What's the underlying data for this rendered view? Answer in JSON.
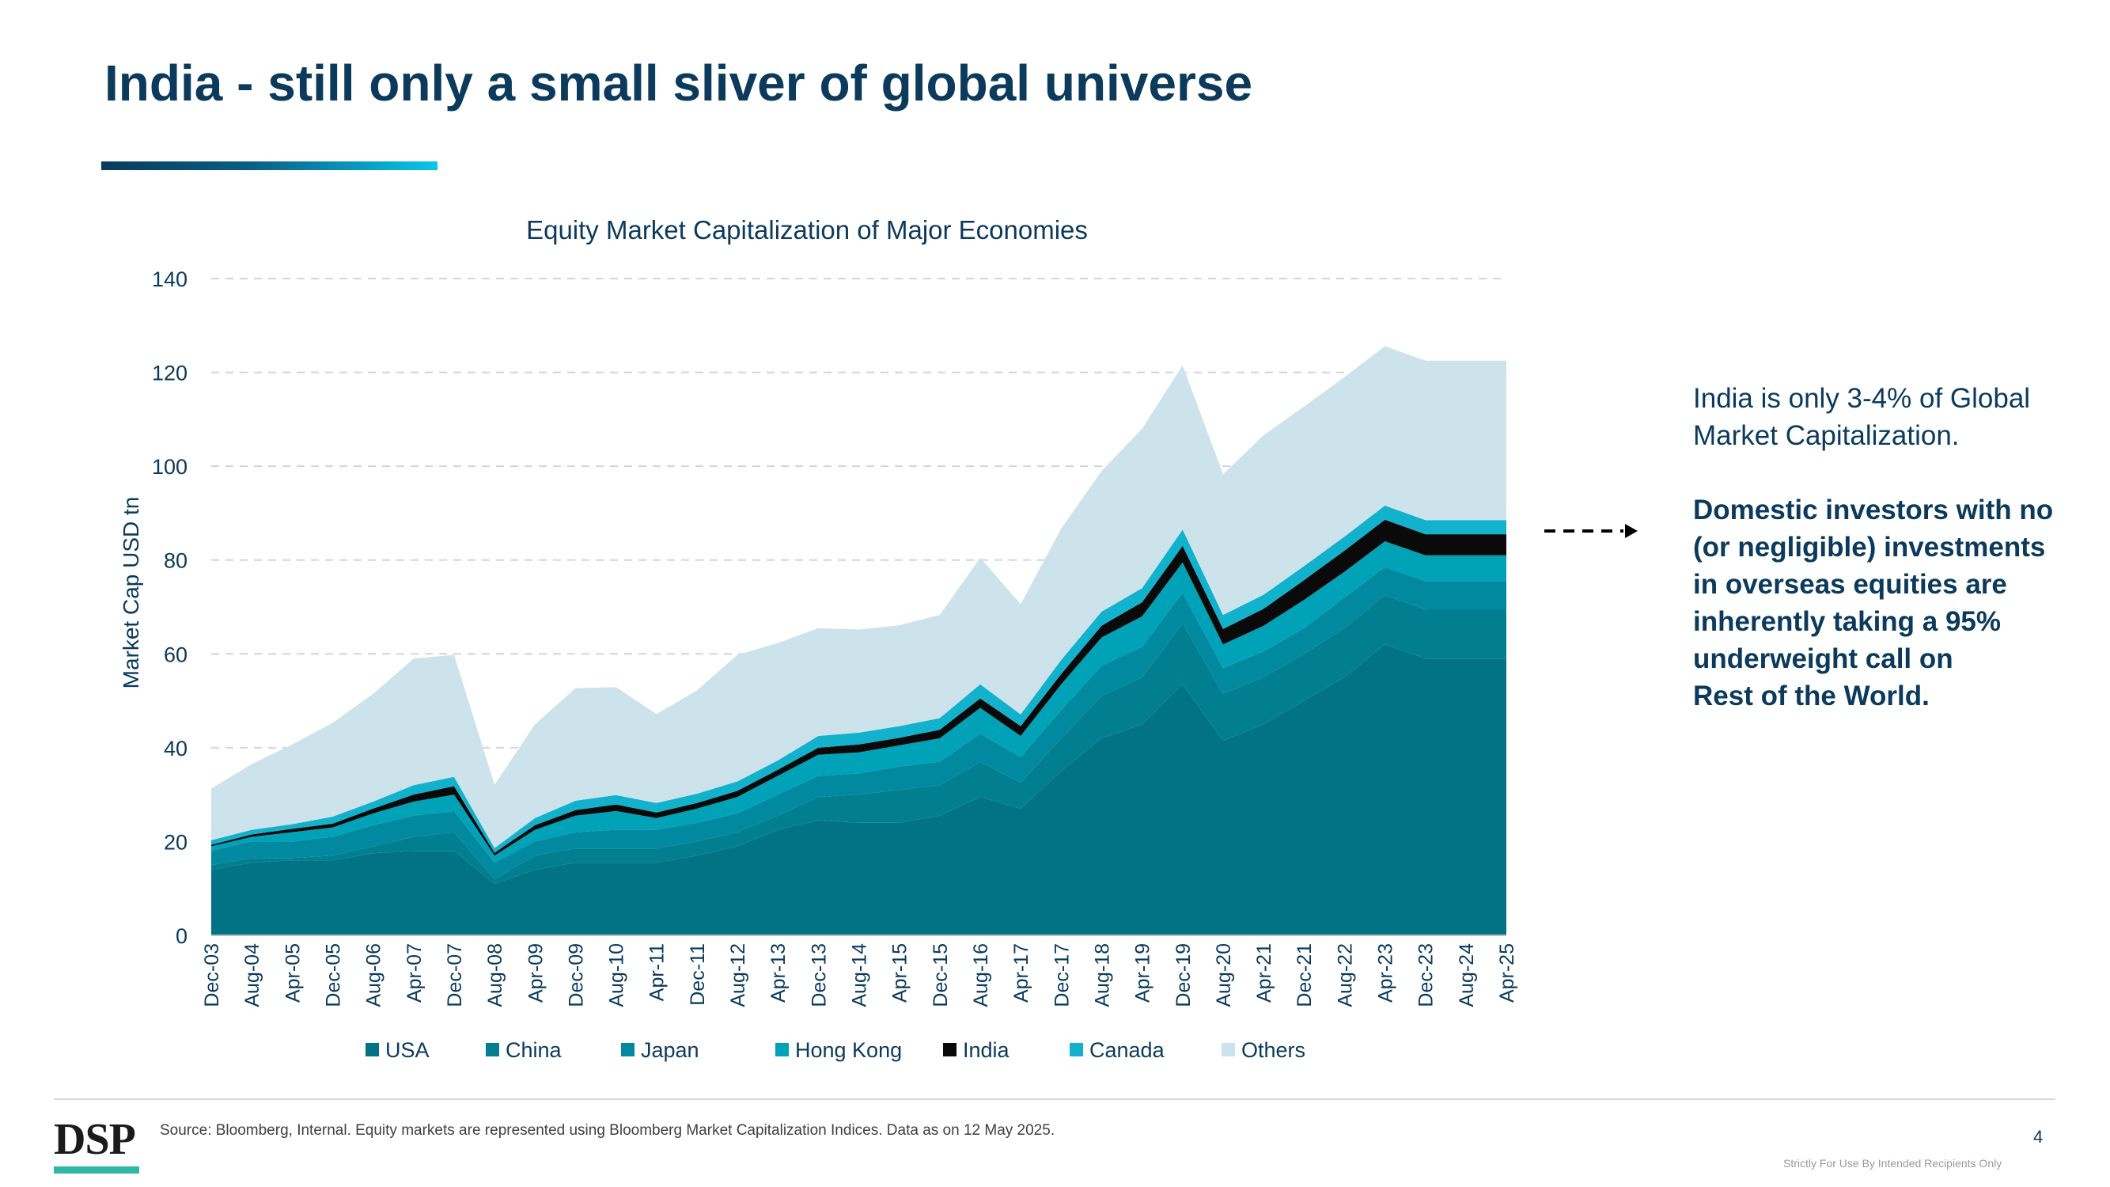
{
  "slide": {
    "title": "India - still only a small sliver of global universe",
    "callout_text": "India is only 3-4% of Global Market Capitalization.",
    "callout_bold_lines": [
      "Domestic investors with no",
      "(or negligible) investments",
      "in overseas equities are",
      "inherently taking a 95%",
      "underweight call on",
      "Rest of the World."
    ],
    "source": "Source: Bloomberg, Internal. Equity markets are represented using Bloomberg Market Capitalization Indices. Data as on 12 May 2025.",
    "page_number": "4",
    "disclaimer": "Strictly For Use By Intended Recipients Only",
    "logo_text": "DSP",
    "colors": {
      "title": "#0b3a5c",
      "logo_bar": "#2fb7a6"
    }
  },
  "chart_data": {
    "type": "area",
    "stacked": true,
    "title": "Equity Market Capitalization of Major Economies",
    "ylabel": "Market Cap USD tn",
    "xlabel": "",
    "ylim": [
      0,
      140
    ],
    "yticks": [
      0,
      20,
      40,
      60,
      80,
      100,
      120,
      140
    ],
    "grid": true,
    "legend_position": "bottom",
    "x_tick_labels": [
      "Dec-03",
      "Aug-04",
      "Apr-05",
      "Dec-05",
      "Aug-06",
      "Apr-07",
      "Dec-07",
      "Aug-08",
      "Apr-09",
      "Dec-09",
      "Aug-10",
      "Apr-11",
      "Dec-11",
      "Aug-12",
      "Apr-13",
      "Dec-13",
      "Aug-14",
      "Apr-15",
      "Dec-15",
      "Aug-16",
      "Apr-17",
      "Dec-17",
      "Aug-18",
      "Apr-19",
      "Dec-19",
      "Aug-20",
      "Apr-21",
      "Dec-21",
      "Aug-22",
      "Apr-23",
      "Dec-23",
      "Aug-24",
      "Apr-25"
    ],
    "x": [
      "Dec-03",
      "Aug-04",
      "Apr-05",
      "Dec-05",
      "Aug-06",
      "Apr-07",
      "Dec-07",
      "Aug-08",
      "Apr-09",
      "Dec-09",
      "Aug-10",
      "Apr-11",
      "Dec-11",
      "Aug-12",
      "Apr-13",
      "Dec-13",
      "Aug-14",
      "Apr-15",
      "Dec-15",
      "Aug-16",
      "Apr-17",
      "Dec-17",
      "Aug-18",
      "Apr-19",
      "Dec-19",
      "Aug-20",
      "Apr-21",
      "Dec-21",
      "Aug-22",
      "Apr-23",
      "Dec-23",
      "Aug-24",
      "Apr-25"
    ],
    "series": [
      {
        "name": "USA",
        "color": "#017385",
        "values": [
          14.0,
          15.5,
          16.0,
          16.0,
          17.5,
          18.0,
          18.0,
          11.0,
          14.0,
          15.5,
          15.5,
          15.5,
          17.0,
          19.0,
          22.5,
          24.5,
          24.0,
          24.0,
          25.5,
          29.5,
          27.0,
          35.0,
          42.0,
          45.0,
          53.5,
          41.5,
          45.0,
          50.0,
          55.0,
          62.0,
          59.0,
          59.0,
          59.0
        ]
      },
      {
        "name": "China",
        "color": "#017F90",
        "values": [
          1.0,
          1.0,
          0.5,
          1.0,
          1.5,
          3.0,
          4.0,
          1.0,
          3.0,
          3.0,
          3.0,
          3.0,
          3.0,
          3.0,
          3.0,
          5.0,
          6.0,
          7.0,
          6.5,
          7.5,
          5.5,
          7.0,
          9.0,
          10.0,
          13.0,
          10.0,
          10.0,
          10.0,
          10.5,
          10.5,
          10.5,
          10.5,
          10.5
        ]
      },
      {
        "name": "Japan",
        "color": "#0189A0",
        "values": [
          3.0,
          3.5,
          3.5,
          4.0,
          4.5,
          4.5,
          4.5,
          3.5,
          3.0,
          3.5,
          4.0,
          4.0,
          4.0,
          4.0,
          4.5,
          4.5,
          4.5,
          5.0,
          5.0,
          6.0,
          5.5,
          6.0,
          6.5,
          6.5,
          6.5,
          5.5,
          5.5,
          5.5,
          6.5,
          6.0,
          6.0,
          6.0,
          6.0
        ]
      },
      {
        "name": "Hong Kong",
        "color": "#00A2B8",
        "values": [
          1.0,
          1.0,
          2.0,
          2.0,
          2.5,
          3.0,
          3.5,
          1.5,
          2.5,
          3.5,
          4.0,
          2.5,
          3.0,
          3.5,
          4.0,
          4.5,
          4.5,
          4.5,
          5.0,
          5.5,
          4.5,
          5.5,
          6.0,
          6.5,
          6.5,
          5.0,
          5.5,
          6.0,
          5.5,
          5.5,
          5.5,
          5.5,
          5.5
        ]
      },
      {
        "name": "India",
        "color": "#0a0a0a",
        "values": [
          0.3,
          0.5,
          0.7,
          0.8,
          1.0,
          1.5,
          1.8,
          0.6,
          1.0,
          1.2,
          1.4,
          1.2,
          1.2,
          1.3,
          1.3,
          1.5,
          1.7,
          1.6,
          1.8,
          2.0,
          2.1,
          2.2,
          2.5,
          3.0,
          3.5,
          3.3,
          3.6,
          4.2,
          4.5,
          4.6,
          4.5,
          4.5,
          4.5
        ]
      },
      {
        "name": "Canada",
        "color": "#12B1CC",
        "values": [
          1.0,
          1.0,
          1.0,
          1.5,
          1.5,
          2.0,
          2.0,
          1.0,
          1.5,
          2.0,
          2.0,
          2.0,
          2.0,
          2.0,
          2.0,
          2.5,
          2.5,
          2.5,
          2.5,
          3.0,
          2.5,
          3.0,
          3.0,
          3.0,
          3.5,
          3.0,
          3.0,
          3.0,
          3.0,
          3.0,
          3.0,
          3.0,
          3.0
        ]
      },
      {
        "name": "Others",
        "color": "#CCE3EC",
        "values": [
          11.0,
          14.0,
          17.0,
          20.0,
          23.0,
          27.0,
          26.0,
          13.5,
          20.0,
          24.0,
          23.0,
          19.0,
          22.0,
          27.0,
          25.0,
          23.0,
          22.0,
          21.5,
          22.0,
          27.0,
          23.5,
          28.0,
          30.0,
          34.0,
          35.0,
          30.0,
          34.0,
          34.0,
          34.0,
          34.0,
          34.0,
          34.0,
          34.0
        ]
      }
    ],
    "annotation_arrow": true
  }
}
